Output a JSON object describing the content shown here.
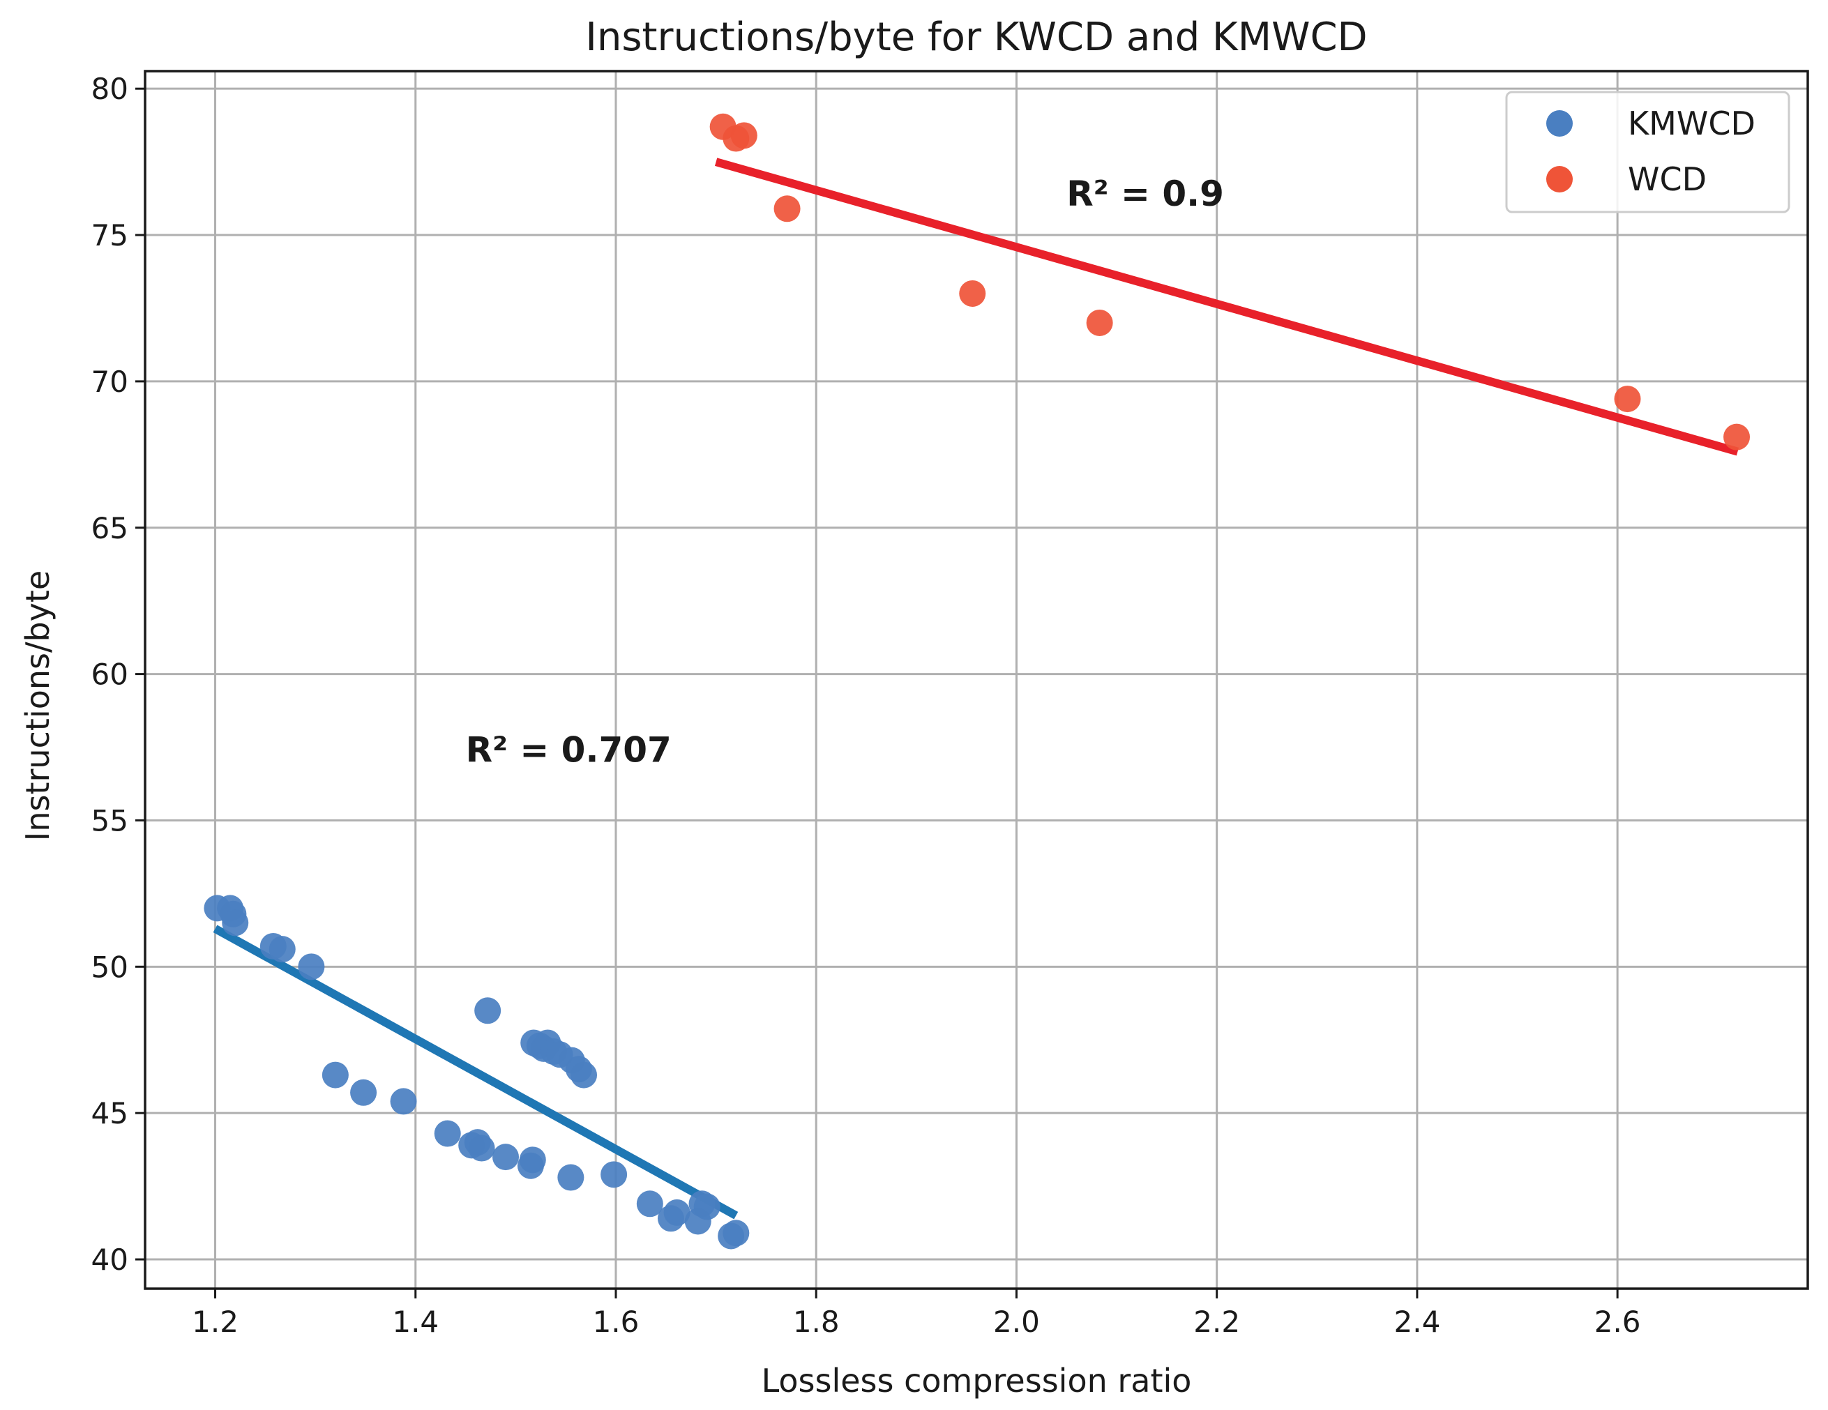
{
  "chart_data": {
    "type": "scatter",
    "title": "Instructions/byte for KWCD and KMWCD",
    "xlabel": "Lossless compression ratio",
    "ylabel": "Instructions/byte",
    "xlim": [
      1.13,
      2.79
    ],
    "ylim": [
      39.0,
      80.6
    ],
    "grid": true,
    "legend_position": "top-right",
    "xticks": [
      1.2,
      1.4,
      1.6,
      1.8,
      2.0,
      2.2,
      2.4,
      2.6
    ],
    "yticks": [
      40,
      45,
      50,
      55,
      60,
      65,
      70,
      75,
      80
    ],
    "xtick_labels": [
      "1.2",
      "1.4",
      "1.6",
      "1.8",
      "2.0",
      "2.2",
      "2.4",
      "2.6"
    ],
    "ytick_labels": [
      "40",
      "45",
      "50",
      "55",
      "60",
      "65",
      "70",
      "75",
      "80"
    ],
    "series": [
      {
        "name": "KMWCD",
        "color": "#4a7fc1",
        "line_color": "#1f77b4",
        "points": [
          [
            1.202,
            52.0
          ],
          [
            1.215,
            52.0
          ],
          [
            1.218,
            51.8
          ],
          [
            1.22,
            51.5
          ],
          [
            1.258,
            50.7
          ],
          [
            1.267,
            50.6
          ],
          [
            1.296,
            50.0
          ],
          [
            1.32,
            46.3
          ],
          [
            1.348,
            45.7
          ],
          [
            1.388,
            45.4
          ],
          [
            1.432,
            44.3
          ],
          [
            1.456,
            43.9
          ],
          [
            1.462,
            44.0
          ],
          [
            1.466,
            43.8
          ],
          [
            1.472,
            48.5
          ],
          [
            1.49,
            43.5
          ],
          [
            1.515,
            43.2
          ],
          [
            1.517,
            43.4
          ],
          [
            1.518,
            47.4
          ],
          [
            1.524,
            47.3
          ],
          [
            1.528,
            47.2
          ],
          [
            1.532,
            47.4
          ],
          [
            1.538,
            47.1
          ],
          [
            1.544,
            47.0
          ],
          [
            1.555,
            42.8
          ],
          [
            1.556,
            46.8
          ],
          [
            1.563,
            46.5
          ],
          [
            1.568,
            46.3
          ],
          [
            1.598,
            42.9
          ],
          [
            1.634,
            41.9
          ],
          [
            1.655,
            41.4
          ],
          [
            1.661,
            41.6
          ],
          [
            1.682,
            41.3
          ],
          [
            1.686,
            41.9
          ],
          [
            1.691,
            41.8
          ],
          [
            1.715,
            40.8
          ],
          [
            1.72,
            40.9
          ]
        ],
        "trend": [
          [
            1.2,
            51.3
          ],
          [
            1.72,
            41.5
          ]
        ],
        "r2_label": "R² = 0.707",
        "r2_at": [
          1.45,
          57.0
        ]
      },
      {
        "name": "WCD",
        "color": "#ef5438",
        "line_color": "#e8212a",
        "points": [
          [
            1.707,
            78.7
          ],
          [
            1.72,
            78.3
          ],
          [
            1.728,
            78.4
          ],
          [
            1.771,
            75.9
          ],
          [
            1.956,
            73.0
          ],
          [
            2.083,
            72.0
          ],
          [
            2.61,
            69.4
          ],
          [
            2.719,
            68.1
          ]
        ],
        "trend": [
          [
            1.7,
            77.5
          ],
          [
            2.72,
            67.6
          ]
        ],
        "r2_label": "R² = 0.9",
        "r2_at": [
          2.05,
          76.0
        ]
      }
    ]
  }
}
